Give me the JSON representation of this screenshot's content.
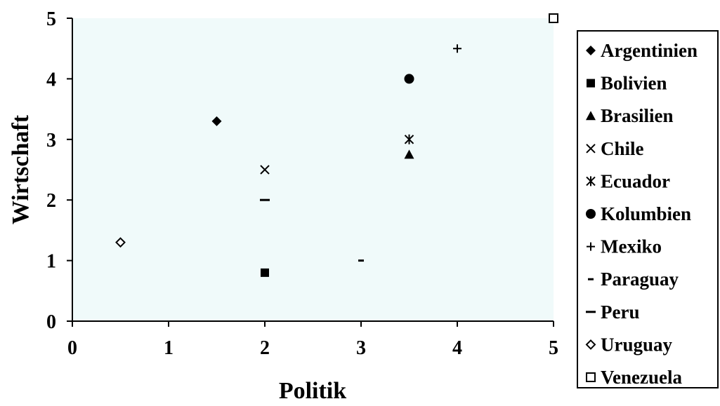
{
  "chart_data": {
    "type": "scatter",
    "title": "",
    "xlabel": "Politik",
    "ylabel": "Wirtschaft",
    "xlim": [
      0,
      5
    ],
    "ylim": [
      0,
      5
    ],
    "xticks": [
      "0",
      "1",
      "2",
      "3",
      "4",
      "5"
    ],
    "yticks": [
      "0",
      "1",
      "2",
      "3",
      "4",
      "5"
    ],
    "grid": false,
    "legend_position": "right",
    "plot_background": "#f0fafa",
    "marker_color": "#000000",
    "series": [
      {
        "name": "Argentinien",
        "marker": "diamond-filled",
        "x": [
          1.5
        ],
        "y": [
          3.3
        ]
      },
      {
        "name": "Bolivien",
        "marker": "square-filled",
        "x": [
          2.0
        ],
        "y": [
          0.8
        ]
      },
      {
        "name": "Brasilien",
        "marker": "triangle-filled",
        "x": [
          3.5
        ],
        "y": [
          2.75
        ]
      },
      {
        "name": "Chile",
        "marker": "x",
        "x": [
          2.0
        ],
        "y": [
          2.5
        ]
      },
      {
        "name": "Ecuador",
        "marker": "asterisk",
        "x": [
          3.5
        ],
        "y": [
          3.0
        ]
      },
      {
        "name": "Kolumbien",
        "marker": "circle-filled",
        "x": [
          3.5
        ],
        "y": [
          4.0
        ]
      },
      {
        "name": "Mexiko",
        "marker": "plus",
        "x": [
          4.0
        ],
        "y": [
          4.5
        ]
      },
      {
        "name": "Paraguay",
        "marker": "short-dash",
        "x": [
          3.0
        ],
        "y": [
          1.0
        ]
      },
      {
        "name": "Peru",
        "marker": "long-dash",
        "x": [
          2.0
        ],
        "y": [
          2.0
        ]
      },
      {
        "name": "Uruguay",
        "marker": "diamond-open",
        "x": [
          0.5
        ],
        "y": [
          1.3
        ]
      },
      {
        "name": "Venezuela",
        "marker": "square-open",
        "x": [
          5.0
        ],
        "y": [
          5.0
        ]
      }
    ]
  }
}
